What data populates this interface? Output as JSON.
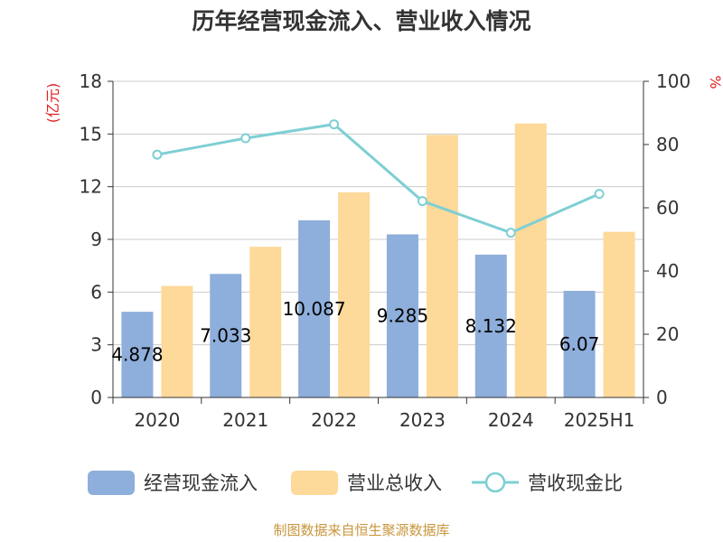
{
  "chart_data": {
    "type": "bar",
    "title": "历年经营现金流入、营业收入情况",
    "categories": [
      "2020",
      "2021",
      "2022",
      "2023",
      "2024",
      "2025H1"
    ],
    "y_left": {
      "unit": "(亿元)",
      "min": 0,
      "max": 18,
      "ticks": [
        0,
        3,
        6,
        9,
        12,
        15,
        18
      ]
    },
    "y_right": {
      "unit": "%",
      "min": 0,
      "max": 100,
      "ticks": [
        0,
        20,
        40,
        60,
        80,
        100
      ]
    },
    "grid": true,
    "legend_position": "bottom",
    "series": [
      {
        "name": "经营现金流入",
        "type": "bar",
        "axis": "left",
        "color": "#8eaedb",
        "values": [
          4.878,
          7.033,
          10.087,
          9.285,
          8.132,
          6.07
        ],
        "labels": [
          "4.878",
          "7.033",
          "10.087",
          "9.285",
          "8.132",
          "6.07"
        ]
      },
      {
        "name": "营业总收入",
        "type": "bar",
        "axis": "left",
        "color": "#fdd99a",
        "values": [
          6.35,
          8.58,
          11.68,
          14.95,
          15.6,
          9.43
        ]
      },
      {
        "name": "营收现金比",
        "type": "line",
        "axis": "right",
        "color": "#7ecfd4",
        "values": [
          76.8,
          82.0,
          86.4,
          62.1,
          52.1,
          64.4
        ]
      }
    ]
  },
  "footer": "制图数据来自恒生聚源数据库"
}
